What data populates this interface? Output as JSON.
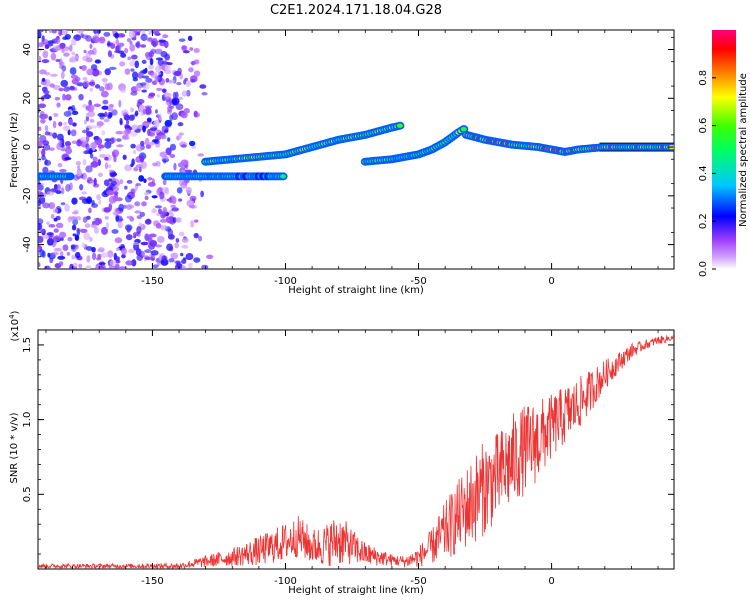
{
  "figure_title": "C2E1.2024.171.18.04.G28",
  "chart_data": [
    {
      "type": "heatmap",
      "xlabel": "Height of straight line (km)",
      "ylabel": "Frequency (Hz)",
      "xlim": [
        -193,
        46
      ],
      "ylim": [
        -50,
        48
      ],
      "x_ticks": [
        -150,
        -100,
        -50,
        0
      ],
      "x_tick_labels": [
        "-150",
        "-100",
        "-50",
        "0"
      ],
      "y_ticks": [
        -40,
        -20,
        0,
        20,
        40
      ],
      "y_tick_labels": [
        "-40",
        "-20",
        "0",
        "20",
        "40"
      ],
      "colorbar": {
        "label": "Normalized spectral amplitude",
        "range": [
          0,
          1
        ],
        "ticks": [
          0.0,
          0.2,
          0.4,
          0.6,
          0.8
        ],
        "tick_labels": [
          "0.0",
          "0.2",
          "0.4",
          "0.6",
          "0.8"
        ],
        "colors": [
          "#ffffff",
          "#b060ff",
          "#0000ff",
          "#00c8ff",
          "#00ff00",
          "#ffff00",
          "#ff8000",
          "#ff0000",
          "#ff0080"
        ]
      },
      "features": [
        {
          "kind": "noise",
          "x_range": [
            -193,
            -128
          ],
          "f_range": [
            -50,
            48
          ],
          "amplitude": 0.15
        },
        {
          "kind": "ridge",
          "points": [
            [
              -193,
              -12
            ],
            [
              -180,
              -12
            ]
          ],
          "amplitude": 0.45
        },
        {
          "kind": "ridge",
          "points": [
            [
              -145,
              -12
            ],
            [
              -130,
              -12
            ],
            [
              -120,
              -12
            ],
            [
              -110,
              -12
            ],
            [
              -100,
              -12
            ]
          ],
          "amplitude": 0.4
        },
        {
          "kind": "ridge",
          "points": [
            [
              -130,
              -6
            ],
            [
              -120,
              -5
            ],
            [
              -110,
              -4
            ],
            [
              -100,
              -3
            ],
            [
              -90,
              0
            ],
            [
              -80,
              3
            ],
            [
              -70,
              5
            ],
            [
              -60,
              8
            ],
            [
              -56,
              9
            ]
          ],
          "amplitude": 0.6
        },
        {
          "kind": "ridge",
          "points": [
            [
              -70,
              -6
            ],
            [
              -60,
              -5
            ],
            [
              -50,
              -3
            ],
            [
              -45,
              -1
            ],
            [
              -40,
              2
            ],
            [
              -35,
              6
            ],
            [
              -32,
              8
            ]
          ],
          "amplitude": 0.55
        },
        {
          "kind": "ridge",
          "points": [
            [
              -32,
              5
            ],
            [
              -25,
              3
            ],
            [
              -15,
              1
            ],
            [
              -5,
              0
            ],
            [
              5,
              -2
            ],
            [
              10,
              -1
            ],
            [
              20,
              0
            ],
            [
              46,
              0
            ]
          ],
          "amplitude": 0.85
        }
      ]
    },
    {
      "type": "line",
      "xlabel": "Height of straight line (km)",
      "ylabel": "SNR (10 * v/v)",
      "y_multiplier": "(x10",
      "y_multiplier_exp": "4",
      "xlim": [
        -193,
        46
      ],
      "ylim": [
        0,
        1.6
      ],
      "x_ticks": [
        -150,
        -100,
        -50,
        0
      ],
      "x_tick_labels": [
        "-150",
        "-100",
        "-50",
        "0"
      ],
      "y_ticks": [
        0.5,
        1.0,
        1.5
      ],
      "y_tick_labels": [
        "0.5",
        "1.0",
        "1.5"
      ],
      "line_color": "#ee3333",
      "series_envelope": {
        "x": [
          -193,
          -180,
          -160,
          -140,
          -130,
          -120,
          -110,
          -100,
          -95,
          -90,
          -85,
          -80,
          -75,
          -70,
          -65,
          -60,
          -55,
          -50,
          -45,
          -40,
          -35,
          -30,
          -25,
          -20,
          -15,
          -10,
          -5,
          0,
          5,
          10,
          15,
          20,
          25,
          30,
          35,
          40,
          46
        ],
        "mean": [
          0.02,
          0.02,
          0.02,
          0.02,
          0.05,
          0.08,
          0.12,
          0.18,
          0.22,
          0.15,
          0.16,
          0.2,
          0.15,
          0.1,
          0.08,
          0.06,
          0.05,
          0.08,
          0.15,
          0.25,
          0.35,
          0.45,
          0.55,
          0.62,
          0.72,
          0.8,
          0.86,
          0.95,
          1.03,
          1.1,
          1.2,
          1.3,
          1.38,
          1.46,
          1.5,
          1.53,
          1.55
        ],
        "spread": [
          0.015,
          0.015,
          0.015,
          0.02,
          0.04,
          0.06,
          0.1,
          0.13,
          0.14,
          0.12,
          0.14,
          0.18,
          0.12,
          0.08,
          0.06,
          0.04,
          0.04,
          0.07,
          0.12,
          0.2,
          0.25,
          0.3,
          0.32,
          0.3,
          0.32,
          0.3,
          0.28,
          0.22,
          0.2,
          0.18,
          0.14,
          0.1,
          0.07,
          0.05,
          0.03,
          0.03,
          0.02
        ]
      }
    }
  ]
}
